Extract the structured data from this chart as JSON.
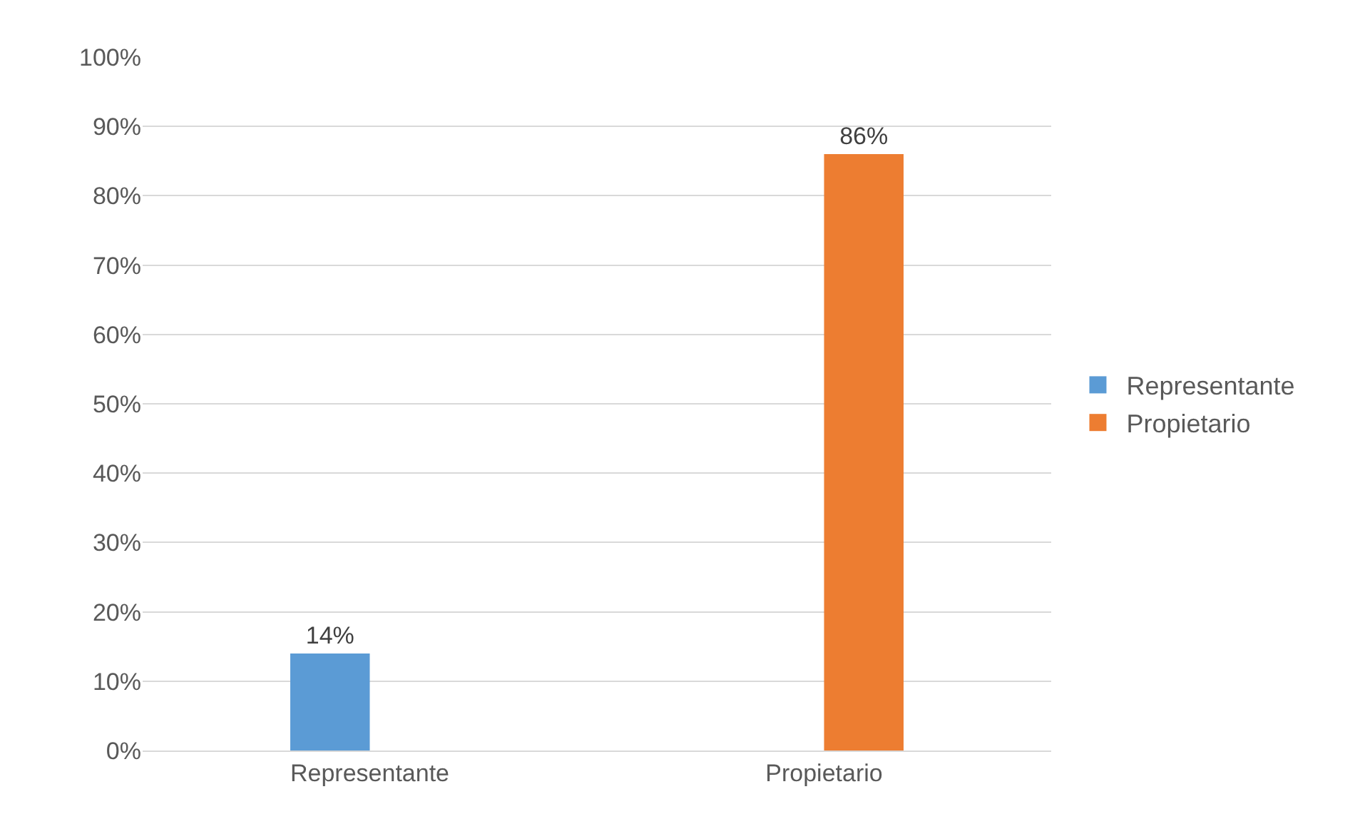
{
  "chart_data": {
    "type": "bar",
    "categories": [
      "Representante",
      "Propietario"
    ],
    "series": [
      {
        "name": "Representante",
        "color": "#5b9bd5",
        "values": [
          14,
          null
        ],
        "value_labels": [
          "14%",
          null
        ]
      },
      {
        "name": "Propietario",
        "color": "#ed7d31",
        "values": [
          null,
          86
        ],
        "value_labels": [
          null,
          "86%"
        ]
      }
    ],
    "ylim": [
      0,
      100
    ],
    "yticks": [
      {
        "value": 0,
        "label": "0%"
      },
      {
        "value": 10,
        "label": "10%"
      },
      {
        "value": 20,
        "label": "20%"
      },
      {
        "value": 30,
        "label": "30%"
      },
      {
        "value": 40,
        "label": "40%"
      },
      {
        "value": 50,
        "label": "50%"
      },
      {
        "value": 60,
        "label": "60%"
      },
      {
        "value": 70,
        "label": "70%"
      },
      {
        "value": 80,
        "label": "80%"
      },
      {
        "value": 90,
        "label": "90%"
      },
      {
        "value": 100,
        "label": "100%"
      }
    ],
    "grid": "y",
    "legend": "right"
  }
}
